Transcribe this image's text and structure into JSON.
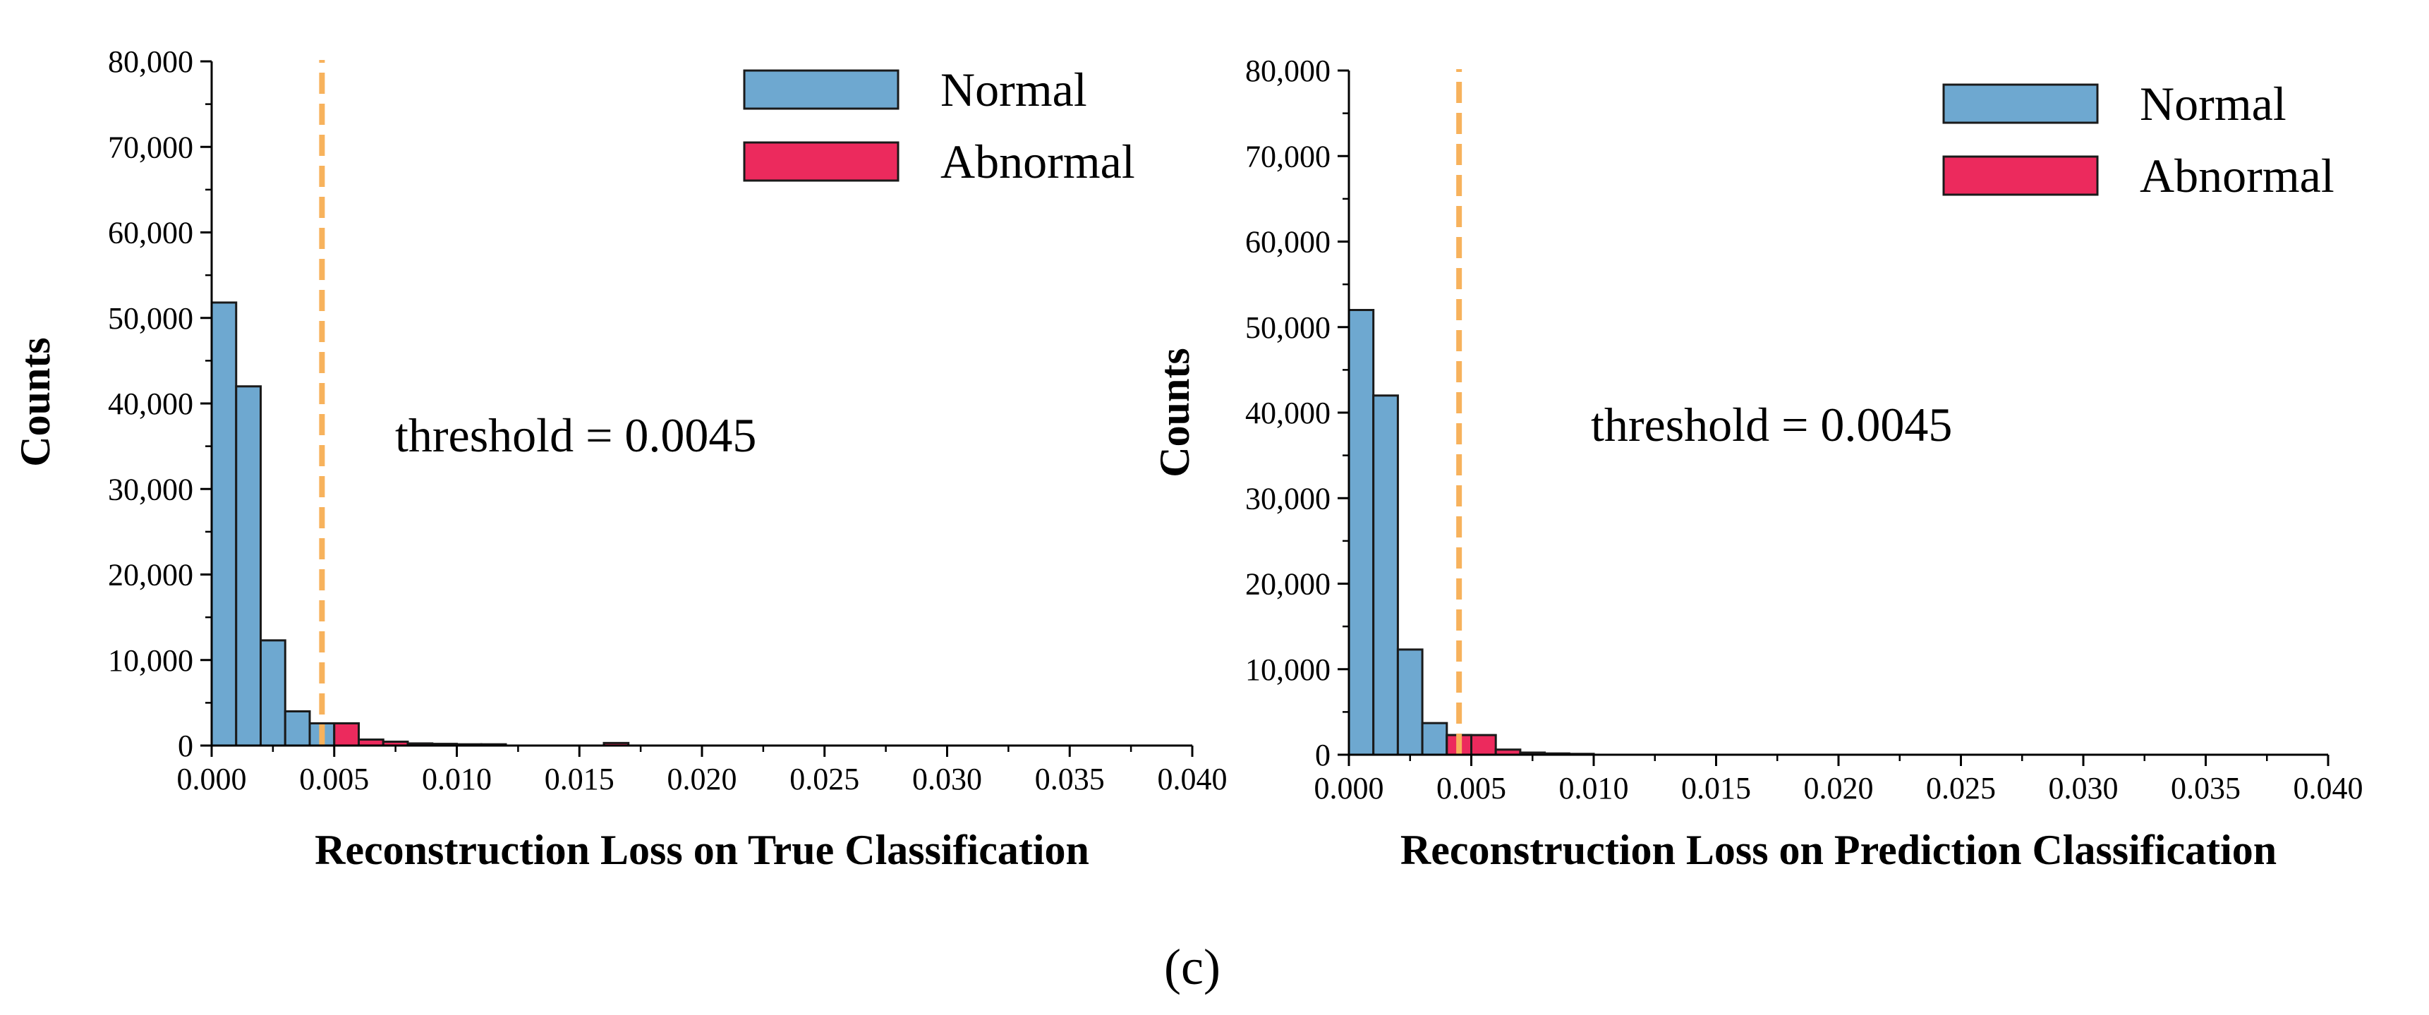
{
  "caption": "(c)",
  "colors": {
    "normal": "#6ea8d0",
    "abnormal": "#ec2a5d",
    "threshold": "#f7b25c",
    "edge": "#1a1a1a"
  },
  "chart_data": [
    {
      "type": "bar",
      "xlabel": "Reconstruction Loss on True Classification",
      "ylabel": "Counts",
      "xlim": [
        0,
        0.04
      ],
      "ylim": [
        0,
        80000
      ],
      "xticks": [
        "0.000",
        "0.005",
        "0.010",
        "0.015",
        "0.020",
        "0.025",
        "0.030",
        "0.035",
        "0.040"
      ],
      "yticks": [
        "0",
        "10,000",
        "20,000",
        "30,000",
        "40,000",
        "50,000",
        "60,000",
        "70,000",
        "80,000"
      ],
      "bin_width": 0.001,
      "threshold": 0.0045,
      "annotation": "threshold = 0.0045",
      "legend": {
        "position": "top-right"
      },
      "series": [
        {
          "name": "Normal",
          "color_key": "normal",
          "bins": [
            [
              0.0,
              51800
            ],
            [
              0.001,
              42000
            ],
            [
              0.002,
              12300
            ],
            [
              0.003,
              4000
            ],
            [
              0.004,
              2600
            ]
          ]
        },
        {
          "name": "Abnormal",
          "color_key": "abnormal",
          "bins": [
            [
              0.005,
              2600
            ],
            [
              0.006,
              700
            ],
            [
              0.007,
              450
            ],
            [
              0.008,
              250
            ],
            [
              0.009,
              200
            ],
            [
              0.01,
              150
            ],
            [
              0.011,
              150
            ],
            [
              0.016,
              300
            ]
          ]
        }
      ]
    },
    {
      "type": "bar",
      "xlabel": "Reconstruction Loss on Prediction Classification",
      "ylabel": "Counts",
      "xlim": [
        0,
        0.04
      ],
      "ylim": [
        0,
        80000
      ],
      "xticks": [
        "0.000",
        "0.005",
        "0.010",
        "0.015",
        "0.020",
        "0.025",
        "0.030",
        "0.035",
        "0.040"
      ],
      "yticks": [
        "0",
        "10,000",
        "20,000",
        "30,000",
        "40,000",
        "50,000",
        "60,000",
        "70,000",
        "80,000"
      ],
      "bin_width": 0.001,
      "threshold": 0.0045,
      "annotation": "threshold = 0.0045",
      "legend": {
        "position": "top-right"
      },
      "series": [
        {
          "name": "Normal",
          "color_key": "normal",
          "bins": [
            [
              0.0,
              52000
            ],
            [
              0.001,
              42000
            ],
            [
              0.002,
              12300
            ],
            [
              0.003,
              3700
            ],
            [
              0.004,
              2300
            ]
          ]
        },
        {
          "name": "Abnormal",
          "color_key": "abnormal",
          "bins": [
            [
              0.004,
              2300
            ],
            [
              0.005,
              2300
            ],
            [
              0.006,
              600
            ],
            [
              0.007,
              250
            ],
            [
              0.008,
              150
            ],
            [
              0.009,
              100
            ]
          ]
        }
      ]
    }
  ]
}
